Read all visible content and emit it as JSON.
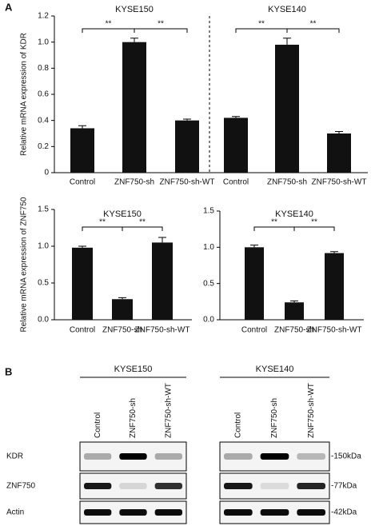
{
  "panel_labels": [
    "A",
    "B"
  ],
  "chart_data": [
    {
      "type": "bar",
      "ylabel": "Relative mRNA expression of KDR",
      "ylim": [
        0,
        1.2
      ],
      "yticks": [
        0,
        0.2,
        0.4,
        0.6,
        0.8,
        {
          "value": 1,
          "label": "1.0"
        },
        1.2
      ],
      "color": "#111111",
      "groups": [
        {
          "title": "KYSE150",
          "categories": [
            "Control",
            "ZNF750-sh",
            "ZNF750-sh-WT"
          ],
          "values": [
            0.34,
            1.0,
            0.4
          ],
          "errors": [
            0.02,
            0.03,
            0.01
          ],
          "significance": [
            "**",
            "**"
          ]
        },
        {
          "title": "KYSE140",
          "categories": [
            "Control",
            "ZNF750-sh",
            "ZNF750-sh-WT"
          ],
          "values": [
            0.42,
            0.98,
            0.3
          ],
          "errors": [
            0.01,
            0.05,
            0.015
          ],
          "significance": [
            "**",
            "**"
          ]
        }
      ]
    },
    {
      "type": "bar",
      "ylabel": "Relative mRNA expression of ZNF750",
      "ylim": [
        0,
        1.5
      ],
      "yticks": [
        {
          "value": 0,
          "label": "0.0"
        },
        0.5,
        {
          "value": 1,
          "label": "1.0"
        },
        1.5
      ],
      "color": "#111111",
      "groups": [
        {
          "title": "KYSE150",
          "categories": [
            "Control",
            "ZNF750-sh",
            "ZNF750-sh-WT"
          ],
          "values": [
            0.98,
            0.28,
            1.05
          ],
          "errors": [
            0.02,
            0.02,
            0.07
          ],
          "significance": [
            "**",
            "**"
          ]
        }
      ]
    },
    {
      "type": "bar",
      "ylim": [
        0,
        1.5
      ],
      "yticks": [
        {
          "value": 0,
          "label": "0.0"
        },
        0.5,
        {
          "value": 1,
          "label": "1.0"
        },
        1.5
      ],
      "color": "#111111",
      "groups": [
        {
          "title": "KYSE140",
          "categories": [
            "Control",
            "ZNF750-sh",
            "ZNF750-sh-WT"
          ],
          "values": [
            1.0,
            0.24,
            0.92
          ],
          "errors": [
            0.03,
            0.02,
            0.02
          ],
          "significance": [
            "**",
            "**"
          ]
        }
      ]
    }
  ],
  "blot": {
    "groups": [
      {
        "title": "KYSE150",
        "lanes": [
          "Control",
          "ZNF750-sh",
          "ZNF750-sh-WT"
        ]
      },
      {
        "title": "KYSE140",
        "lanes": [
          "Control",
          "ZNF750-sh",
          "ZNF750-sh-WT"
        ]
      }
    ],
    "rows": [
      {
        "label": "KDR",
        "marker": "-150kDa"
      },
      {
        "label": "ZNF750",
        "marker": "-77kDa"
      },
      {
        "label": "Actin",
        "marker": "-42kDa"
      }
    ]
  }
}
